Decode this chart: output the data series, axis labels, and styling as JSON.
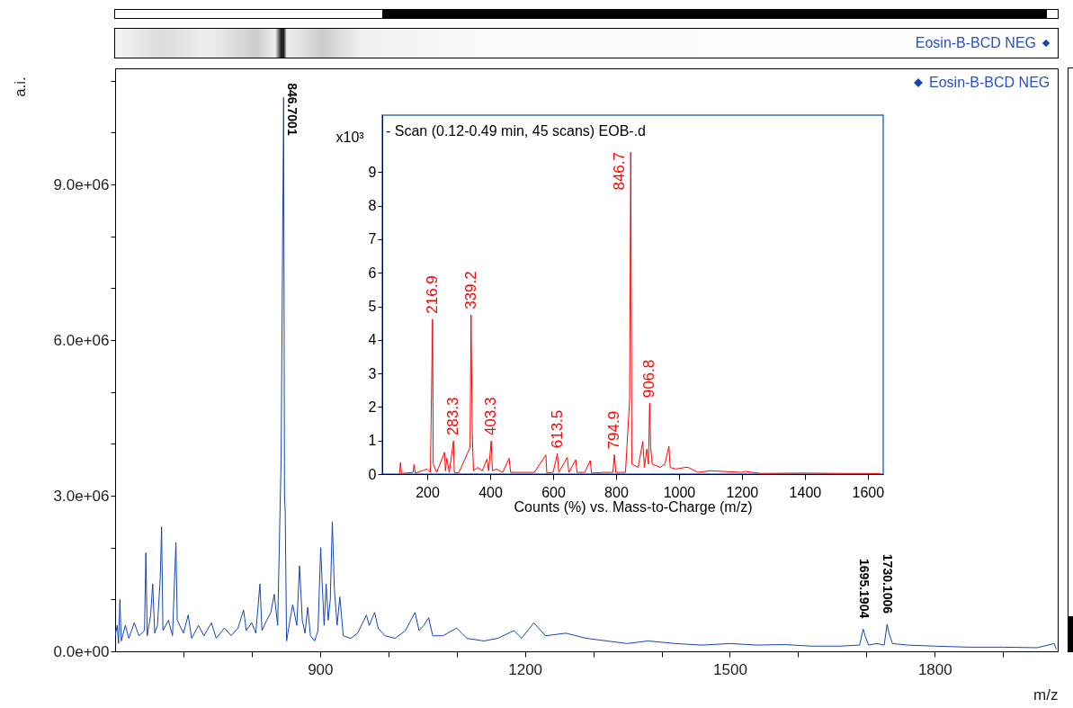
{
  "chart_data": [
    {
      "type": "line",
      "xlabel": "m/z",
      "ylabel": "a.i.",
      "legend": "top right",
      "xlim": [
        600,
        1980
      ],
      "ylim": [
        0,
        11240000
      ],
      "xticks": [
        {
          "value": 700,
          "label": null
        },
        {
          "value": 800,
          "label": null
        },
        900,
        {
          "value": 1000,
          "label": null
        },
        {
          "value": 1100,
          "label": null
        },
        1200,
        {
          "value": 1300,
          "label": null
        },
        {
          "value": 1400,
          "label": null
        },
        1500,
        {
          "value": 1600,
          "label": null
        },
        {
          "value": 1700,
          "label": null
        },
        1800,
        {
          "value": 1900,
          "label": null
        }
      ],
      "yticks": [
        {
          "value": 0,
          "label": "0.0e+00"
        },
        {
          "value": 1000000,
          "label": null
        },
        {
          "value": 2000000,
          "label": null
        },
        {
          "value": 3000000,
          "label": "3.0e+06"
        },
        {
          "value": 4000000,
          "label": null
        },
        {
          "value": 5000000,
          "label": null
        },
        {
          "value": 6000000,
          "label": "6.0e+06"
        },
        {
          "value": 7000000,
          "label": null
        },
        {
          "value": 8000000,
          "label": null
        },
        {
          "value": 9000000,
          "label": "9.0e+06"
        },
        {
          "value": 10000000,
          "label": null
        },
        {
          "value": 11000000,
          "label": null
        }
      ],
      "annotations": [
        "Eosin-B-BCD NEG",
        {
          "text": "846.7001",
          "x": 846.7001,
          "y": 10680000
        },
        {
          "text": "1695.1904",
          "x": 1695.1904,
          "y": 430000
        },
        {
          "text": "1730.1006",
          "x": 1730.1006,
          "y": 520000
        }
      ],
      "series": [
        {
          "name": "Eosin-B-BCD NEG",
          "color": "#1646b4",
          "x": [
            600,
            603,
            605,
            607,
            609,
            615,
            620,
            628,
            635,
            643,
            645,
            647,
            652,
            655,
            658,
            662,
            666,
            668,
            670,
            678,
            684,
            689,
            691,
            700,
            707,
            712,
            722,
            730,
            741,
            748,
            760,
            770,
            780,
            788,
            792,
            800,
            806,
            812,
            815,
            822,
            828,
            833,
            838,
            843,
            846.7,
            848,
            849,
            851,
            856,
            860,
            866,
            870,
            874,
            878,
            882,
            886,
            892,
            897,
            901,
            903,
            906,
            909,
            912,
            915,
            918,
            921,
            925,
            929,
            934,
            945,
            955,
            968,
            972,
            980,
            985,
            995,
            1010,
            1025,
            1039,
            1045,
            1052,
            1059,
            1065,
            1080,
            1100,
            1115,
            1140,
            1160,
            1184,
            1195,
            1213,
            1230,
            1260,
            1290,
            1320,
            1350,
            1380,
            1420,
            1460,
            1500,
            1540,
            1580,
            1620,
            1660,
            1690,
            1695.2,
            1698,
            1703,
            1715,
            1726,
            1730.1,
            1733,
            1738,
            1760,
            1800,
            1850,
            1900,
            1950,
            1975,
            1978
          ],
          "values": [
            300000,
            500000,
            150000,
            1000000,
            200000,
            500000,
            250000,
            550000,
            300000,
            400000,
            1900000,
            300000,
            700000,
            1300000,
            350000,
            500000,
            1400000,
            2400000,
            400000,
            600000,
            300000,
            2100000,
            600000,
            350000,
            700000,
            250000,
            500000,
            300000,
            550000,
            250000,
            450000,
            300000,
            450000,
            800000,
            400000,
            550000,
            350000,
            1300000,
            400000,
            600000,
            750000,
            1100000,
            500000,
            3700000,
            10680000,
            3000000,
            2700000,
            200000,
            600000,
            900000,
            500000,
            1650000,
            600000,
            350000,
            850000,
            300000,
            200000,
            400000,
            2000000,
            1350000,
            500000,
            1300000,
            600000,
            1000000,
            2500000,
            1200000,
            500000,
            1050000,
            300000,
            250000,
            350000,
            700000,
            500000,
            750000,
            450000,
            300000,
            250000,
            400000,
            750000,
            400000,
            500000,
            650000,
            300000,
            300000,
            450000,
            250000,
            200000,
            250000,
            400000,
            250000,
            550000,
            300000,
            350000,
            250000,
            200000,
            150000,
            200000,
            150000,
            120000,
            150000,
            120000,
            130000,
            100000,
            100000,
            120000,
            430000,
            300000,
            120000,
            150000,
            120000,
            520000,
            350000,
            150000,
            120000,
            100000,
            80000,
            80000,
            70000,
            150000,
            40000
          ]
        }
      ]
    },
    {
      "type": "line",
      "title": "- Scan (0.12-0.49 min, 45 scans) EOB-.d",
      "xlabel": "Counts (%) vs. Mass-to-Charge (m/z)",
      "ylabel": "x10³",
      "xlim": [
        57,
        1649
      ],
      "ylim": [
        0,
        10.7
      ],
      "xticks": [
        200,
        400,
        600,
        800,
        1000,
        1200,
        1400,
        1600
      ],
      "yticks": [
        0,
        1,
        2,
        3,
        4,
        5,
        6,
        7,
        8,
        9
      ],
      "annotations": [
        {
          "text": "216.9",
          "x": 216.9,
          "y": 4.62
        },
        {
          "text": "283.3",
          "x": 283.3,
          "y": 0.99
        },
        {
          "text": "339.2",
          "x": 339.2,
          "y": 4.75
        },
        {
          "text": "403.3",
          "x": 403.3,
          "y": 0.99
        },
        {
          "text": "613.5",
          "x": 613.5,
          "y": 0.61
        },
        {
          "text": "794.9",
          "x": 794.9,
          "y": 0.58
        },
        {
          "text": "846.7",
          "x": 846.7,
          "y": 9.6
        },
        {
          "text": "906.8",
          "x": 906.8,
          "y": 2.11
        }
      ],
      "series": [
        {
          "color": "#ff0000",
          "x": [
            112,
            115,
            118,
            155,
            158,
            162,
            190,
            200,
            210,
            216.9,
            219,
            230,
            255,
            258,
            262,
            270,
            283.3,
            286,
            300,
            336,
            339.2,
            343,
            347,
            360,
            375,
            390,
            395,
            403.3,
            407,
            420,
            440,
            460,
            465,
            500,
            540,
            577,
            580,
            600,
            613.5,
            618,
            645,
            650,
            672,
            676,
            700,
            718,
            722,
            760,
            790,
            794.9,
            799,
            830,
            843,
            846.7,
            850,
            870,
            885,
            890,
            898,
            903,
            906.8,
            910,
            915,
            940,
            955,
            968,
            972,
            990,
            1020,
            1030,
            1060,
            1100,
            1140,
            1200,
            1210,
            1260,
            1400,
            1500,
            1600,
            1640
          ],
          "values": [
            0.02,
            0.35,
            0.02,
            0.05,
            0.28,
            0.03,
            0.12,
            0.15,
            0.05,
            4.62,
            0.3,
            0.05,
            0.65,
            0.1,
            0.47,
            0.05,
            0.99,
            0.05,
            0.03,
            0.8,
            4.75,
            1.24,
            0.1,
            0.2,
            0.1,
            0.45,
            0.1,
            0.99,
            0.1,
            0.15,
            0.05,
            0.47,
            0.05,
            0.05,
            0.05,
            0.57,
            0.03,
            0.05,
            0.61,
            0.05,
            0.5,
            0.05,
            0.43,
            0.05,
            0.05,
            0.4,
            0.03,
            0.05,
            0.05,
            0.58,
            0.05,
            0.05,
            2.2,
            9.6,
            0.3,
            0.2,
            0.97,
            0.2,
            0.75,
            0.3,
            2.11,
            0.8,
            0.3,
            0.2,
            0.3,
            0.83,
            0.2,
            0.15,
            0.2,
            0.2,
            0.05,
            0.1,
            0.08,
            0.05,
            0.08,
            0.02,
            0.03,
            0.02,
            0.02,
            0.01
          ]
        }
      ]
    }
  ]
}
